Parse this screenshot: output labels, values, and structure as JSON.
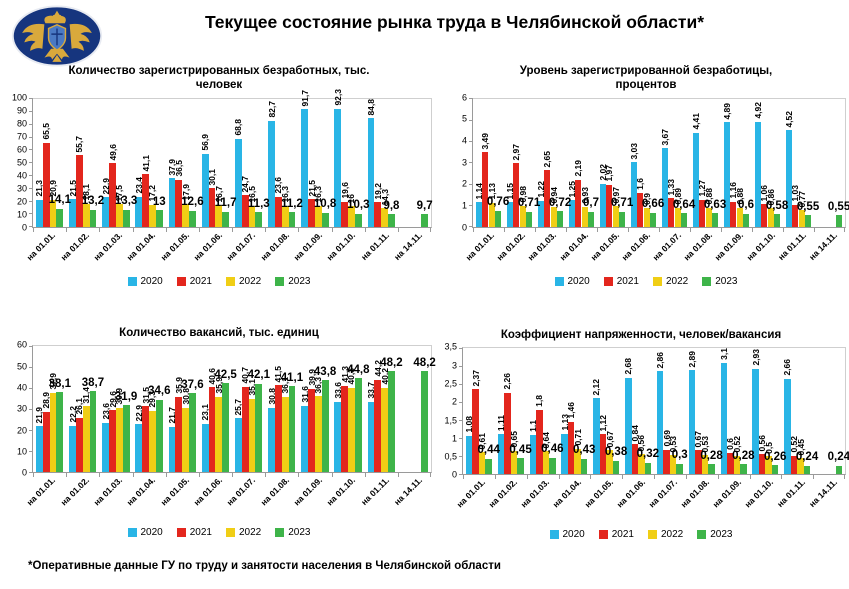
{
  "header": {
    "title": "Текущее состояние рынка труда в Челябинской области*",
    "logo": "prosecutor-emblem"
  },
  "footer": {
    "note": "*Оперативные данные ГУ по труду и занятости населения в Челябинской области"
  },
  "colors": {
    "2020": "#29b5e6",
    "2021": "#e3261d",
    "2022": "#f0ce15",
    "2023": "#3eb449",
    "emblem_navy": "#16357e",
    "emblem_gold": "#d9a93c"
  },
  "chart_data": [
    {
      "type": "bar",
      "title": "Количество зарегистрированных безработных, тыс. человек",
      "xlabel": "",
      "ylabel": "",
      "ylim": [
        0,
        100
      ],
      "ytick_step": 10,
      "grid": false,
      "legend_position": "bottom",
      "categories": [
        "на 01.01.",
        "на 01.02.",
        "на 01.03.",
        "на 01.04.",
        "на 01.05.",
        "на 01.06.",
        "на 01.07.",
        "на 01.08.",
        "на 01.09.",
        "на 01.10.",
        "на 01.11.",
        "на 14.11."
      ],
      "series": [
        {
          "name": "2020",
          "values": [
            21.3,
            21.5,
            22.9,
            23.4,
            37.9,
            56.9,
            68.8,
            82.7,
            91.7,
            92.3,
            84.8,
            null
          ]
        },
        {
          "name": "2021",
          "values": [
            65.5,
            55.7,
            49.6,
            41.1,
            36.5,
            30.1,
            24.7,
            23.6,
            21.5,
            19.6,
            19.2,
            null
          ]
        },
        {
          "name": "2022",
          "values": [
            20.9,
            18.1,
            17.5,
            17.2,
            17.9,
            16.7,
            16.5,
            16.3,
            16.3,
            16,
            14.3,
            null
          ]
        },
        {
          "name": "2023",
          "values": [
            14.1,
            13.2,
            13.3,
            13,
            12.6,
            11.7,
            11.3,
            11.2,
            10.8,
            10.3,
            9.8,
            9.7
          ]
        }
      ]
    },
    {
      "type": "bar",
      "title": "Уровень зарегистрированной безработицы, процентов",
      "xlabel": "",
      "ylabel": "",
      "ylim": [
        0,
        6
      ],
      "ytick_step": 1,
      "grid": false,
      "legend_position": "bottom",
      "categories": [
        "на 01.01.",
        "на 01.02.",
        "на 01.03.",
        "на 01.04.",
        "на 01.05.",
        "на 01.06.",
        "на 01.07.",
        "на 01.08.",
        "на 01.09.",
        "на 01.10.",
        "на 01.11.",
        "на 14.11."
      ],
      "series": [
        {
          "name": "2020",
          "values": [
            1.14,
            1.15,
            1.22,
            1.25,
            2.02,
            3.03,
            3.67,
            4.41,
            4.89,
            4.92,
            4.52,
            null
          ]
        },
        {
          "name": "2021",
          "values": [
            3.49,
            2.97,
            2.65,
            2.19,
            1.97,
            1.6,
            1.33,
            1.27,
            1.16,
            1.06,
            1.03,
            null
          ]
        },
        {
          "name": "2022",
          "values": [
            1.13,
            0.98,
            0.94,
            0.93,
            0.97,
            0.9,
            0.89,
            0.88,
            0.88,
            0.86,
            0.77,
            null
          ]
        },
        {
          "name": "2023",
          "values": [
            0.76,
            0.71,
            0.72,
            0.7,
            0.71,
            0.66,
            0.64,
            0.63,
            0.6,
            0.58,
            0.55,
            0.55
          ]
        }
      ]
    },
    {
      "type": "bar",
      "title": "Количество вакансий, тыс. единиц",
      "xlabel": "",
      "ylabel": "",
      "ylim": [
        0,
        60
      ],
      "ytick_step": 10,
      "grid": false,
      "legend_position": "bottom",
      "categories": [
        "на 01.01.",
        "на 01.02.",
        "на 01.03.",
        "на 01.04.",
        "на 01.05.",
        "на 01.06.",
        "на 01.07.",
        "на 01.08.",
        "на 01.09.",
        "на 01.10.",
        "на 01.11.",
        "на 14.11."
      ],
      "series": [
        {
          "name": "2020",
          "values": [
            21.9,
            22.2,
            23.6,
            22.9,
            21.7,
            23.1,
            25.7,
            30.8,
            31.6,
            33.6,
            33.7,
            null
          ]
        },
        {
          "name": "2021",
          "values": [
            28.9,
            26.1,
            29.6,
            31.5,
            35.9,
            40.6,
            40.7,
            41.5,
            39.9,
            41.3,
            44.2,
            null
          ]
        },
        {
          "name": "2022",
          "values": [
            37.9,
            31.4,
            30.9,
            29.3,
            30.8,
            35.9,
            35.1,
            36.1,
            36.3,
            40.3,
            40.2,
            null
          ]
        },
        {
          "name": "2023",
          "values": [
            38.1,
            38.7,
            31.9,
            34.6,
            37.6,
            42.5,
            42.1,
            41.1,
            43.8,
            44.8,
            48.2,
            48.2
          ]
        }
      ]
    },
    {
      "type": "bar",
      "title": "Коэффициент напряженности, человек/вакансия",
      "xlabel": "",
      "ylabel": "",
      "ylim": [
        0,
        3.5
      ],
      "ytick_step": 0.5,
      "grid": false,
      "legend_position": "bottom",
      "categories": [
        "на 01.01.",
        "на 01.02.",
        "на 01.03.",
        "на 01.04.",
        "на 01.05.",
        "на 01.06.",
        "на 01.07.",
        "на 01.08.",
        "на 01.09.",
        "на 01.10.",
        "на 01.11.",
        "на 14.11."
      ],
      "series": [
        {
          "name": "2020",
          "values": [
            1.08,
            1.11,
            1.1,
            1.13,
            2.12,
            2.68,
            2.86,
            2.89,
            3.1,
            2.93,
            2.66,
            null
          ]
        },
        {
          "name": "2021",
          "values": [
            2.37,
            2.26,
            1.8,
            1.46,
            1.12,
            0.84,
            0.69,
            0.67,
            0.6,
            0.56,
            0.52,
            null
          ]
        },
        {
          "name": "2022",
          "values": [
            0.61,
            0.65,
            0.64,
            0.71,
            0.67,
            0.56,
            0.53,
            0.53,
            0.52,
            0.5,
            0.45,
            null
          ]
        },
        {
          "name": "2023",
          "values": [
            0.44,
            0.45,
            0.46,
            0.43,
            0.38,
            0.32,
            0.3,
            0.28,
            0.28,
            0.26,
            0.24,
            0.24
          ]
        }
      ]
    }
  ]
}
